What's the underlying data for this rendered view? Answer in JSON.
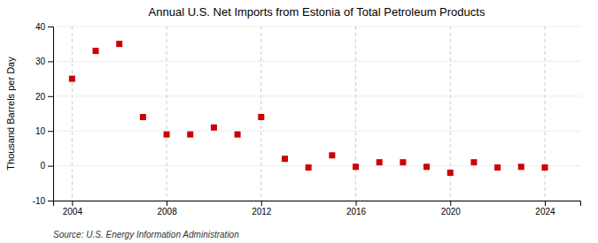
{
  "chart_data": {
    "type": "scatter",
    "title": "Annual U.S. Net Imports from Estonia of Total Petroleum Products",
    "ylabel": "Thousand Barrels per Day",
    "annotations": [
      "Source: U.S. Energy Information Administration"
    ],
    "x": [
      2004,
      2005,
      2006,
      2007,
      2008,
      2009,
      2010,
      2011,
      2012,
      2013,
      2014,
      2015,
      2016,
      2017,
      2018,
      2019,
      2020,
      2021,
      2022,
      2023,
      2024
    ],
    "values": [
      25,
      33,
      35,
      14,
      9,
      9,
      11,
      9,
      14,
      2,
      -0.5,
      3,
      -0.3,
      1,
      1,
      -0.3,
      -2,
      1,
      -0.5,
      -0.3,
      -0.5
    ],
    "color": "#cc0000",
    "marker": "square",
    "line_style": "none",
    "xlim": [
      2003.2,
      2025.5
    ],
    "xticks": [
      2004,
      2008,
      2012,
      2016,
      2020,
      2024
    ],
    "ylim": [
      -10,
      40
    ],
    "yticks": [
      -10,
      0,
      10,
      20,
      30,
      40
    ],
    "grid": true
  }
}
